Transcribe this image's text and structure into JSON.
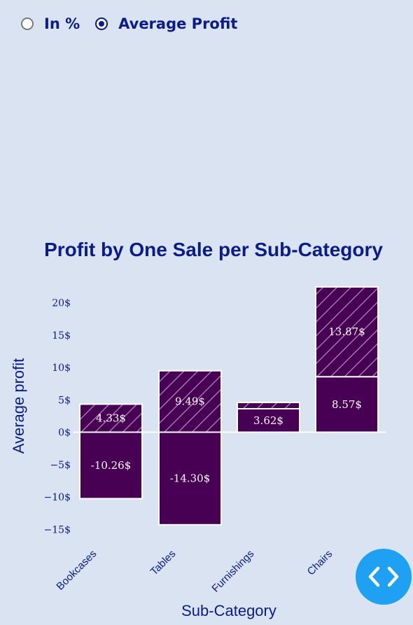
{
  "controls": {
    "options": [
      {
        "label": "In %",
        "selected": false
      },
      {
        "label": "Average Profit",
        "selected": true
      }
    ]
  },
  "colors": {
    "background": "#dae3f2",
    "bar_fill": "#470054",
    "text_navy": "#0a1b8a",
    "fab": "#1ea1f2"
  },
  "fab": {
    "icon": "code-icon"
  },
  "chart_data": {
    "type": "bar",
    "stacked": true,
    "title": "Profit by One Sale per Sub-Category",
    "xlabel": "Sub-Category",
    "ylabel": "Average profit",
    "categories": [
      "Bookcases",
      "Tables",
      "Furnishings",
      "Chairs"
    ],
    "series": [
      {
        "values": [
          -10.26,
          -14.3,
          3.62,
          8.57
        ],
        "labels": [
          "-10.26$",
          "-14.30$",
          "3.62$",
          "8.57$"
        ],
        "pattern": "solid"
      },
      {
        "values": [
          4.33,
          9.49,
          0.97,
          13.87
        ],
        "labels": [
          "4.33$",
          "9.49$",
          "",
          "13.87$"
        ],
        "pattern": "hatched"
      }
    ],
    "yticks": [
      -15,
      -10,
      -5,
      0,
      5,
      10,
      15,
      20
    ],
    "ytick_labels": [
      "−15$",
      "−10$",
      "−5$",
      "0$",
      "5$",
      "10$",
      "15$",
      "20$"
    ],
    "ylim": [
      -17,
      23
    ],
    "grid": false,
    "legend": "none"
  }
}
